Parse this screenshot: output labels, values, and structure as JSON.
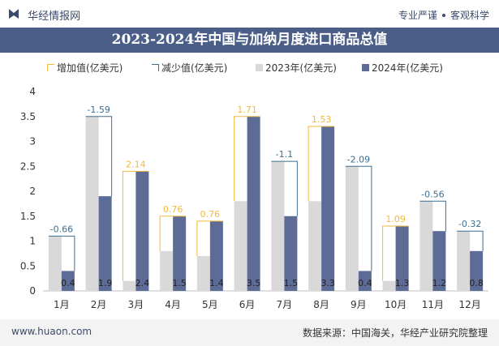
{
  "header": {
    "brand": "华经情报网",
    "right_left": "专业严谨",
    "right_right": "客观科学"
  },
  "chart_data": {
    "type": "bar",
    "title": "2023-2024年中国与加纳月度进口商品总值",
    "categories": [
      "1月",
      "2月",
      "3月",
      "4月",
      "5月",
      "6月",
      "7月",
      "8月",
      "9月",
      "10月",
      "11月",
      "12月"
    ],
    "series": [
      {
        "name": "增加值(亿美元)",
        "kind": "increase-outline",
        "color": "#f2b93b"
      },
      {
        "name": "减少值(亿美元)",
        "kind": "decrease-outline",
        "color": "#3f6e8f"
      },
      {
        "name": "2023年(亿美元)",
        "kind": "bar",
        "color": "#d9d9d9",
        "values": [
          1.1,
          3.5,
          0.2,
          0.8,
          0.7,
          1.8,
          2.6,
          1.8,
          2.5,
          0.2,
          1.8,
          1.2
        ]
      },
      {
        "name": "2024年(亿美元)",
        "kind": "bar",
        "color": "#5c6c97",
        "values": [
          0.4,
          1.9,
          2.4,
          1.5,
          1.4,
          3.5,
          1.5,
          3.3,
          0.4,
          1.3,
          1.2,
          0.8
        ]
      }
    ],
    "changes": [
      "-0.66",
      "-1.59",
      "2.14",
      "0.76",
      "0.76",
      "1.71",
      "-1.1",
      "1.53",
      "-2.09",
      "1.09",
      "-0.56",
      "-0.32"
    ],
    "bar_labels": [
      "0.4",
      "1.9",
      "2.4",
      "1.5",
      "1.4",
      "3.5",
      "1.5",
      "3.3",
      "0.4",
      "1.3",
      "1.2",
      "0.8"
    ],
    "ylim": [
      0,
      4
    ],
    "yticks": [
      "0",
      "0.5",
      "1",
      "1.5",
      "2",
      "2.5",
      "3",
      "3.5",
      "4"
    ],
    "xlabel": "",
    "ylabel": ""
  },
  "colors": {
    "increase": "#f2b93b",
    "decrease": "#3f6e8f",
    "y2023": "#d9d9d9",
    "y2024": "#5c6c97",
    "title_band": "#4a5e88"
  },
  "footer": {
    "url": "www.huaon.com",
    "source": "数据来源：中国海关，华经产业研究院整理"
  }
}
